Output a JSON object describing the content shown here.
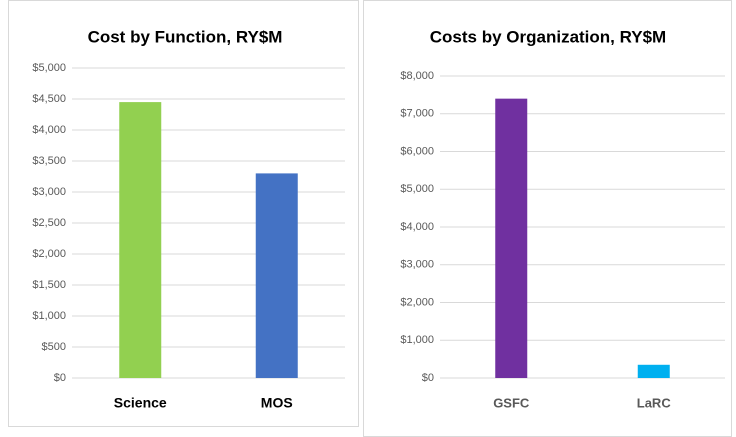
{
  "chart_data": [
    {
      "type": "bar",
      "title": "Cost by Function, RY$M",
      "categories": [
        "Science",
        "MOS"
      ],
      "values": [
        4450,
        3300
      ],
      "colors": [
        "#92d050",
        "#4472c4"
      ],
      "ylim": [
        0,
        5000
      ],
      "yticks": [
        {
          "value": 0,
          "label": "$0"
        },
        {
          "value": 500,
          "label": "$500"
        },
        {
          "value": 1000,
          "label": "$1,000"
        },
        {
          "value": 1500,
          "label": "$1,500"
        },
        {
          "value": 2000,
          "label": "$2,000"
        },
        {
          "value": 2500,
          "label": "$2,500"
        },
        {
          "value": 3000,
          "label": "$3,000"
        },
        {
          "value": 3500,
          "label": "$3,500"
        },
        {
          "value": 4000,
          "label": "$4,000"
        },
        {
          "value": 4500,
          "label": "$4,500"
        },
        {
          "value": 5000,
          "label": "$5,000"
        }
      ],
      "grid": true
    },
    {
      "type": "bar",
      "title": "Costs by Organization, RY$M",
      "categories": [
        "GSFC",
        "LaRC"
      ],
      "values": [
        7400,
        350
      ],
      "colors": [
        "#7030a0",
        "#00b0f0"
      ],
      "ylim": [
        0,
        8000
      ],
      "yticks": [
        {
          "value": 0,
          "label": "$0"
        },
        {
          "value": 1000,
          "label": "$1,000"
        },
        {
          "value": 2000,
          "label": "$2,000"
        },
        {
          "value": 3000,
          "label": "$3,000"
        },
        {
          "value": 4000,
          "label": "$4,000"
        },
        {
          "value": 5000,
          "label": "$5,000"
        },
        {
          "value": 6000,
          "label": "$6,000"
        },
        {
          "value": 7000,
          "label": "$7,000"
        },
        {
          "value": 8000,
          "label": "$8,000"
        }
      ],
      "grid": true
    }
  ]
}
